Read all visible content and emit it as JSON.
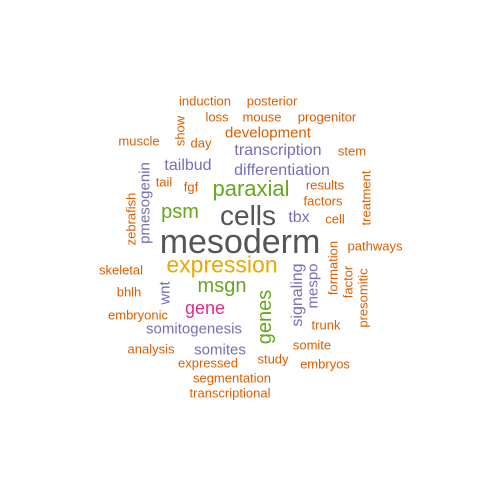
{
  "colors": {
    "orange": "#D95F02",
    "purple": "#7570B3",
    "green": "#66A61E",
    "gold": "#E6AB02",
    "magenta": "#E7298A",
    "grey": "#555555"
  },
  "words": [
    {
      "text": "mesoderm",
      "color": "grey"
    },
    {
      "text": "cells",
      "color": "grey"
    },
    {
      "text": "expression",
      "color": "gold"
    },
    {
      "text": "paraxial",
      "color": "green"
    },
    {
      "text": "psm",
      "color": "green"
    },
    {
      "text": "msgn",
      "color": "green"
    },
    {
      "text": "genes",
      "color": "green"
    },
    {
      "text": "gene",
      "color": "magenta"
    },
    {
      "text": "differentiation",
      "color": "purple"
    },
    {
      "text": "transcription",
      "color": "purple"
    },
    {
      "text": "tailbud",
      "color": "purple"
    },
    {
      "text": "signaling",
      "color": "purple"
    },
    {
      "text": "tbx",
      "color": "purple"
    },
    {
      "text": "mespo",
      "color": "purple"
    },
    {
      "text": "somitogenesis",
      "color": "purple"
    },
    {
      "text": "somites",
      "color": "purple"
    },
    {
      "text": "pmesogenin",
      "color": "purple"
    },
    {
      "text": "wnt",
      "color": "purple"
    },
    {
      "text": "development",
      "color": "orange"
    },
    {
      "text": "induction",
      "color": "orange"
    },
    {
      "text": "posterior",
      "color": "orange"
    },
    {
      "text": "loss",
      "color": "orange"
    },
    {
      "text": "mouse",
      "color": "orange"
    },
    {
      "text": "progenitor",
      "color": "orange"
    },
    {
      "text": "muscle",
      "color": "orange"
    },
    {
      "text": "show",
      "color": "orange"
    },
    {
      "text": "day",
      "color": "orange"
    },
    {
      "text": "stem",
      "color": "orange"
    },
    {
      "text": "tail",
      "color": "orange"
    },
    {
      "text": "fgf",
      "color": "orange"
    },
    {
      "text": "results",
      "color": "orange"
    },
    {
      "text": "factors",
      "color": "orange"
    },
    {
      "text": "treatment",
      "color": "orange"
    },
    {
      "text": "zebrafish",
      "color": "orange"
    },
    {
      "text": "cell",
      "color": "orange"
    },
    {
      "text": "pathways",
      "color": "orange"
    },
    {
      "text": "formation",
      "color": "orange"
    },
    {
      "text": "factor",
      "color": "orange"
    },
    {
      "text": "presomitic",
      "color": "orange"
    },
    {
      "text": "skeletal",
      "color": "orange"
    },
    {
      "text": "bhlh",
      "color": "orange"
    },
    {
      "text": "embryonic",
      "color": "orange"
    },
    {
      "text": "trunk",
      "color": "orange"
    },
    {
      "text": "analysis",
      "color": "orange"
    },
    {
      "text": "somite",
      "color": "orange"
    },
    {
      "text": "expressed",
      "color": "orange"
    },
    {
      "text": "study",
      "color": "orange"
    },
    {
      "text": "embryos",
      "color": "orange"
    },
    {
      "text": "segmentation",
      "color": "orange"
    },
    {
      "text": "transcriptional",
      "color": "orange"
    }
  ]
}
